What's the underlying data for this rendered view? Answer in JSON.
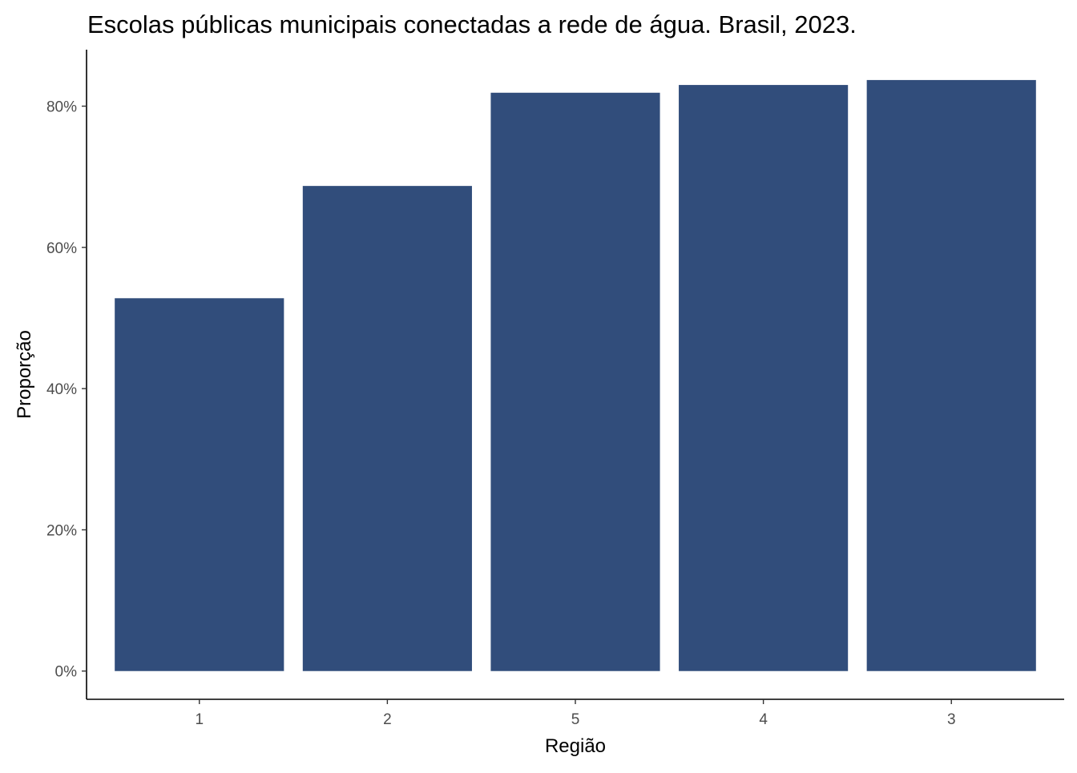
{
  "chart_data": {
    "type": "bar",
    "title": "Escolas públicas municipais conectadas a rede de água. Brasil, 2023.",
    "xlabel": "Região",
    "ylabel": "Proporção",
    "categories": [
      "1",
      "2",
      "5",
      "4",
      "3"
    ],
    "values": [
      0.528,
      0.687,
      0.819,
      0.83,
      0.837
    ],
    "ylim": [
      -0.04,
      0.88
    ],
    "y_ticks": [
      0,
      0.2,
      0.4,
      0.6,
      0.8
    ],
    "y_tick_labels": [
      "0%",
      "20%",
      "40%",
      "60%",
      "80%"
    ],
    "grid": false,
    "legend": "none",
    "colors": {
      "bar": "#314d7b"
    }
  }
}
